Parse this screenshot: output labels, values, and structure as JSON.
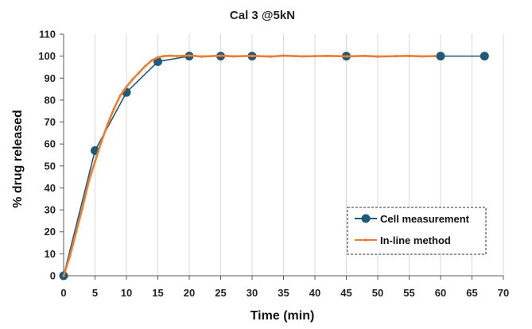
{
  "chart_data": {
    "type": "line",
    "title": "Cal 3 @5kN",
    "xlabel": "Time (min)",
    "ylabel": "% drug released",
    "xlim": [
      0,
      70
    ],
    "ylim": [
      0,
      110
    ],
    "xticks": [
      0,
      5,
      10,
      15,
      20,
      25,
      30,
      35,
      40,
      45,
      50,
      55,
      60,
      65,
      70
    ],
    "yticks": [
      0,
      10,
      20,
      30,
      40,
      50,
      60,
      70,
      80,
      90,
      100,
      110
    ],
    "grid": "vertical",
    "legend_position": "bottom-right",
    "series": [
      {
        "name": "Cell measurement",
        "color": "#1f5b78",
        "marker": "circle",
        "x": [
          0,
          5,
          10,
          15,
          20,
          25,
          30,
          45,
          60,
          67
        ],
        "y": [
          0,
          57,
          83.5,
          97.5,
          100,
          100,
          100,
          100,
          100,
          100
        ]
      },
      {
        "name": "In-line method",
        "color": "#ed7d31",
        "marker": "small-dot",
        "x": [
          0,
          1,
          2,
          3,
          4,
          5,
          6,
          7,
          8,
          9,
          10,
          11,
          12,
          13,
          14,
          15,
          16,
          17,
          18,
          20,
          22,
          25,
          27,
          30,
          33,
          35,
          38,
          40,
          42,
          45,
          48,
          50,
          53,
          55,
          57,
          59
        ],
        "y": [
          0,
          9,
          20,
          31,
          43,
          52,
          61,
          69,
          76,
          82,
          86,
          89.5,
          92.5,
          95.5,
          98,
          99.5,
          100,
          100.2,
          100,
          100.3,
          99.8,
          100.2,
          99.9,
          100.1,
          99.8,
          100.2,
          99.9,
          100,
          100.1,
          99.9,
          100.1,
          99.8,
          100,
          100.1,
          99.9,
          100
        ]
      }
    ]
  }
}
